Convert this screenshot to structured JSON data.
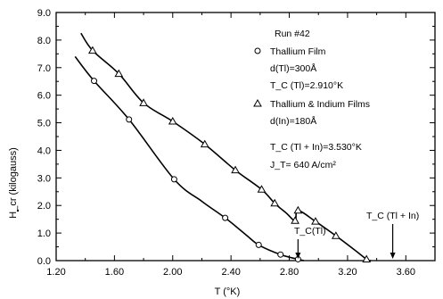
{
  "chart_data": {
    "type": "scatter",
    "title": "",
    "xlabel": "T (°K)",
    "ylabel": "H_cr (kilogauss)",
    "xlim": [
      1.2,
      3.8
    ],
    "ylim": [
      0.0,
      9.0
    ],
    "grid": false,
    "x_ticks": [
      "1.20",
      "1.60",
      "2.00",
      "2.40",
      "2.80",
      "3.20",
      "3.60"
    ],
    "y_ticks": [
      "0.0",
      "1.0",
      "2.0",
      "3.0",
      "4.0",
      "5.0",
      "6.0",
      "7.0",
      "8.0",
      "9.0"
    ],
    "legend": {
      "run": "Run #42",
      "circle_label": "Thallium Film",
      "circle_d": "d(Tl)=300Å",
      "circle_tc": "T_C (Tl)=2.910°K",
      "triangle_label": "Thallium & Indium Films",
      "triangle_d": "d(In)=180Å",
      "triangle_tc": "T_C (Tl + In)=3.530°K",
      "jt": "J_T= 640 A/cm²"
    },
    "annotations": {
      "tc_tl": "T_C(Tl)",
      "tc_tl_in": "T_C (Tl + In)"
    },
    "series": [
      {
        "name": "Thallium Film",
        "marker": "circle",
        "points": [
          [
            1.46,
            6.52
          ],
          [
            1.7,
            5.12
          ],
          [
            2.01,
            2.95
          ],
          [
            2.36,
            1.55
          ],
          [
            2.59,
            0.57
          ],
          [
            2.74,
            0.22
          ],
          [
            2.86,
            0.05
          ]
        ],
        "curve": [
          [
            1.33,
            7.4
          ],
          [
            1.46,
            6.52
          ],
          [
            1.7,
            5.12
          ],
          [
            2.01,
            2.95
          ],
          [
            2.2,
            2.15
          ],
          [
            2.36,
            1.55
          ],
          [
            2.5,
            0.95
          ],
          [
            2.59,
            0.57
          ],
          [
            2.74,
            0.22
          ],
          [
            2.86,
            0.05
          ],
          [
            2.9,
            0.0
          ]
        ]
      },
      {
        "name": "Thallium & Indium Films",
        "marker": "triangle",
        "points": [
          [
            1.45,
            7.62
          ],
          [
            1.63,
            6.78
          ],
          [
            1.8,
            5.72
          ],
          [
            2.0,
            5.05
          ],
          [
            2.22,
            4.22
          ],
          [
            2.43,
            3.28
          ],
          [
            2.61,
            2.58
          ],
          [
            2.7,
            2.08
          ],
          [
            2.84,
            1.45
          ],
          [
            2.86,
            1.82
          ],
          [
            2.98,
            1.42
          ],
          [
            3.12,
            0.9
          ],
          [
            3.33,
            0.05
          ]
        ],
        "curve": [
          [
            1.37,
            8.25
          ],
          [
            1.45,
            7.62
          ],
          [
            1.63,
            6.78
          ],
          [
            1.8,
            5.72
          ],
          [
            2.0,
            5.05
          ],
          [
            2.22,
            4.22
          ],
          [
            2.43,
            3.28
          ],
          [
            2.61,
            2.58
          ],
          [
            2.7,
            2.08
          ],
          [
            2.78,
            1.72
          ],
          [
            2.84,
            1.45
          ],
          [
            2.86,
            1.82
          ],
          [
            2.98,
            1.42
          ],
          [
            3.12,
            0.9
          ],
          [
            3.25,
            0.38
          ],
          [
            3.33,
            0.05
          ],
          [
            3.36,
            0.0
          ]
        ]
      }
    ],
    "arrows": [
      {
        "x": 2.86,
        "label": "T_C(Tl)"
      },
      {
        "x": 3.51,
        "label": "T_C (Tl + In)"
      }
    ]
  }
}
